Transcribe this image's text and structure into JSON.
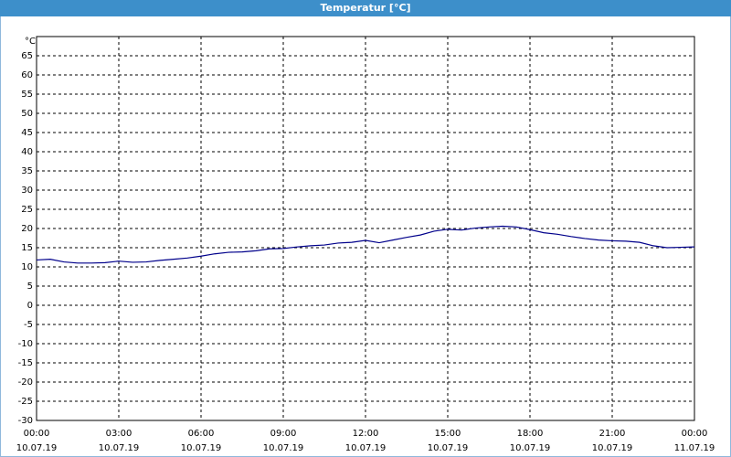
{
  "chart_data": {
    "type": "line",
    "title": "Temperatur [°C]",
    "y_label": "°C",
    "x": [
      0,
      0.5,
      1,
      1.5,
      2,
      2.5,
      3,
      3.5,
      4,
      4.5,
      5,
      5.5,
      6,
      6.5,
      7,
      7.5,
      8,
      8.5,
      9,
      9.5,
      10,
      10.5,
      11,
      11.5,
      12,
      12.5,
      13,
      13.5,
      14,
      14.5,
      15,
      15.5,
      16,
      16.5,
      17,
      17.5,
      18,
      18.5,
      19,
      19.5,
      20,
      20.5,
      21,
      21.5,
      22,
      22.5,
      23,
      23.5,
      24
    ],
    "series": [
      {
        "name": "Temperatur",
        "color": "#00008b",
        "values": [
          11.8,
          12,
          11.3,
          11,
          11,
          11.1,
          11.5,
          11.2,
          11.3,
          11.7,
          12,
          12.3,
          12.8,
          13.4,
          13.8,
          13.9,
          14.2,
          14.7,
          14.8,
          15.2,
          15.5,
          15.7,
          16.2,
          16.4,
          16.9,
          16.3,
          17,
          17.7,
          18.3,
          19.3,
          19.8,
          19.6,
          20.1,
          20.4,
          20.6,
          20.4,
          19.7,
          18.9,
          18.5,
          17.9,
          17.4,
          17,
          16.8,
          16.7,
          16.4,
          15.5,
          15,
          15.1,
          15.2
        ]
      }
    ],
    "xlim": [
      0,
      24
    ],
    "xticks": [
      {
        "value": 0,
        "label": "00:00"
      },
      {
        "value": 3,
        "label": "03:00"
      },
      {
        "value": 6,
        "label": "06:00"
      },
      {
        "value": 9,
        "label": "09:00"
      },
      {
        "value": 12,
        "label": "12:00"
      },
      {
        "value": 15,
        "label": "15:00"
      },
      {
        "value": 18,
        "label": "18:00"
      },
      {
        "value": 21,
        "label": "21:00"
      },
      {
        "value": 24,
        "label": "00:00"
      }
    ],
    "xtick_dates": [
      "10.07.19",
      "10.07.19",
      "10.07.19",
      "10.07.19",
      "10.07.19",
      "10.07.19",
      "10.07.19",
      "10.07.19",
      "11.07.19"
    ],
    "ylim": [
      -30,
      70
    ],
    "yticks": [
      -30,
      -25,
      -20,
      -15,
      -10,
      -5,
      0,
      5,
      10,
      15,
      20,
      25,
      30,
      35,
      40,
      45,
      50,
      55,
      60,
      65
    ],
    "grid": true
  }
}
